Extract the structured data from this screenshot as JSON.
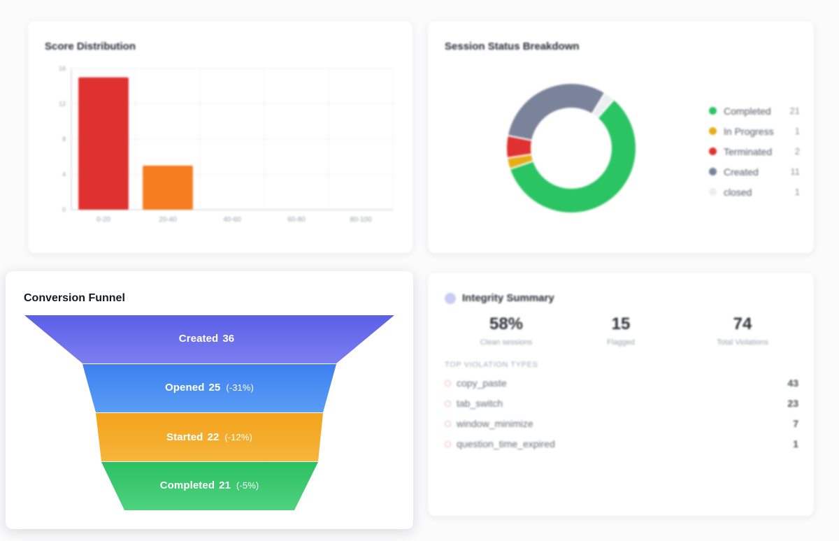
{
  "score_distribution": {
    "title": "Score Distribution",
    "chart_data": {
      "type": "bar",
      "categories": [
        "0-20",
        "20-40",
        "40-60",
        "60-80",
        "80-100"
      ],
      "values": [
        15,
        5,
        0,
        0,
        0
      ],
      "colors": [
        "#e03131",
        "#f57c1f",
        "#e03131",
        "#e03131",
        "#e03131"
      ],
      "y_ticks": [
        "0",
        "4",
        "8",
        "12",
        "16"
      ],
      "ylim": [
        0,
        16
      ],
      "grid": true
    }
  },
  "session_status": {
    "title": "Session Status Breakdown",
    "chart_data": {
      "type": "pie",
      "style": "donut",
      "slices": [
        {
          "label": "Completed",
          "value": 21,
          "color": "#2bc463"
        },
        {
          "label": "In Progress",
          "value": 1,
          "color": "#e5ad17"
        },
        {
          "label": "Terminated",
          "value": 2,
          "color": "#e03131"
        },
        {
          "label": "Created",
          "value": 11,
          "color": "#7a839a"
        },
        {
          "label": "closed",
          "value": 1,
          "color": "#eceef2"
        }
      ],
      "legend": "right"
    }
  },
  "funnel": {
    "title": "Conversion Funnel",
    "stages": [
      {
        "label": "Created",
        "value": "36",
        "delta": "",
        "color_top": "#5b5fe6",
        "color_bottom": "#7c7ff0"
      },
      {
        "label": "Opened",
        "value": "25",
        "delta": "(-31%)",
        "color_top": "#3d7ff0",
        "color_bottom": "#5a9ef5"
      },
      {
        "label": "Started",
        "value": "22",
        "delta": "(-12%)",
        "color_top": "#f2a31b",
        "color_bottom": "#f6b53c"
      },
      {
        "label": "Completed",
        "value": "21",
        "delta": "(-5%)",
        "color_top": "#2cbf62",
        "color_bottom": "#4fd37f"
      }
    ]
  },
  "integrity": {
    "title": "Integrity Summary",
    "icon": "shield-icon",
    "stats": [
      {
        "value": "58%",
        "label": "Clean sessions"
      },
      {
        "value": "15",
        "label": "Flagged"
      },
      {
        "value": "74",
        "label": "Total Violations"
      }
    ],
    "violations_title": "TOP VIOLATION TYPES",
    "violations": [
      {
        "name": "copy_paste",
        "count": "43"
      },
      {
        "name": "tab_switch",
        "count": "23"
      },
      {
        "name": "window_minimize",
        "count": "7"
      },
      {
        "name": "question_time_expired",
        "count": "1"
      }
    ]
  }
}
